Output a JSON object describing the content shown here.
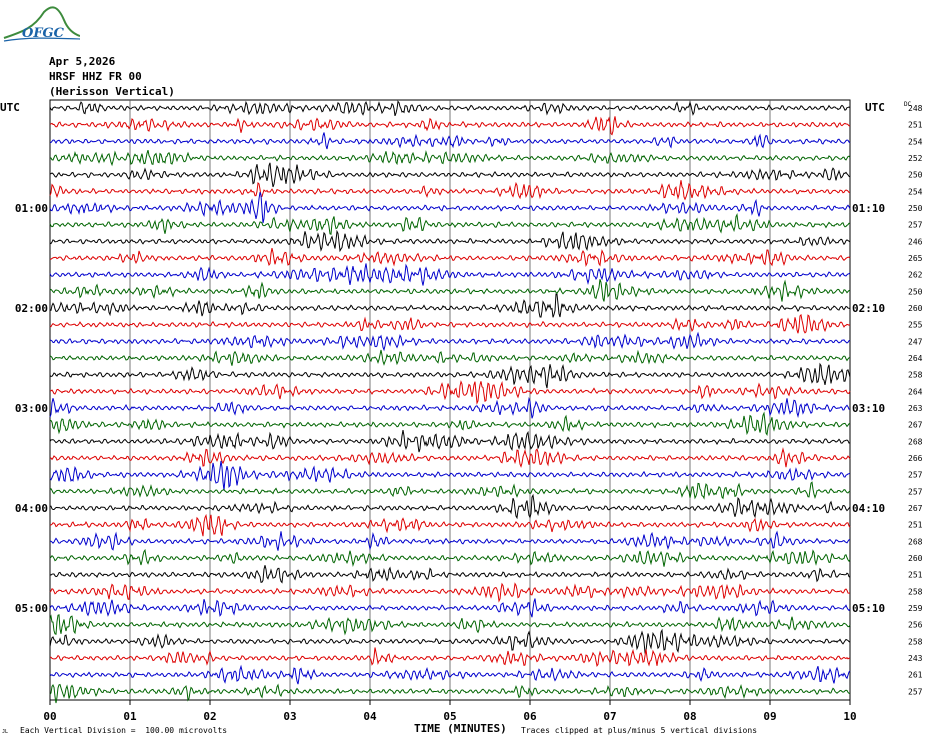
{
  "header": {
    "date": "Apr 5,2026",
    "station": "HRSF HHZ FR 00",
    "description": "(Herisson Vertical)",
    "logo_text": "OFGC"
  },
  "footer": {
    "left_note": "Each Vertical Division =  100.00 microvolts",
    "right_note": "Traces clipped at plus/minus 5 vertical divisions",
    "corner_mark": "JL"
  },
  "chart_data": {
    "type": "line",
    "title": "",
    "xlabel": "TIME (MINUTES)",
    "x_ticks": [
      "00",
      "01",
      "02",
      "03",
      "04",
      "05",
      "06",
      "07",
      "08",
      "09",
      "10"
    ],
    "xlim": [
      0,
      10
    ],
    "left_axis_title": "UTC",
    "right_axis_title": "UTC",
    "right_column_title": "DC",
    "left_time_labels": [
      "01:00",
      "02:00",
      "03:00",
      "04:00",
      "05:00"
    ],
    "right_time_labels": [
      "01:10",
      "02:10",
      "03:10",
      "04:10",
      "05:10"
    ],
    "hour_label_rows": [
      6,
      12,
      18,
      24,
      30
    ],
    "trace_colors": [
      "#000000",
      "#dd0000",
      "#0000cc",
      "#006400"
    ],
    "dc_offsets": [
      248,
      251,
      254,
      252,
      250,
      254,
      250,
      257,
      246,
      265,
      262,
      250,
      260,
      255,
      247,
      264,
      258,
      264,
      263,
      267,
      268,
      266,
      257,
      257,
      267,
      251,
      268,
      260,
      251,
      258,
      259,
      256,
      258,
      243,
      261,
      257
    ],
    "grid": true
  }
}
